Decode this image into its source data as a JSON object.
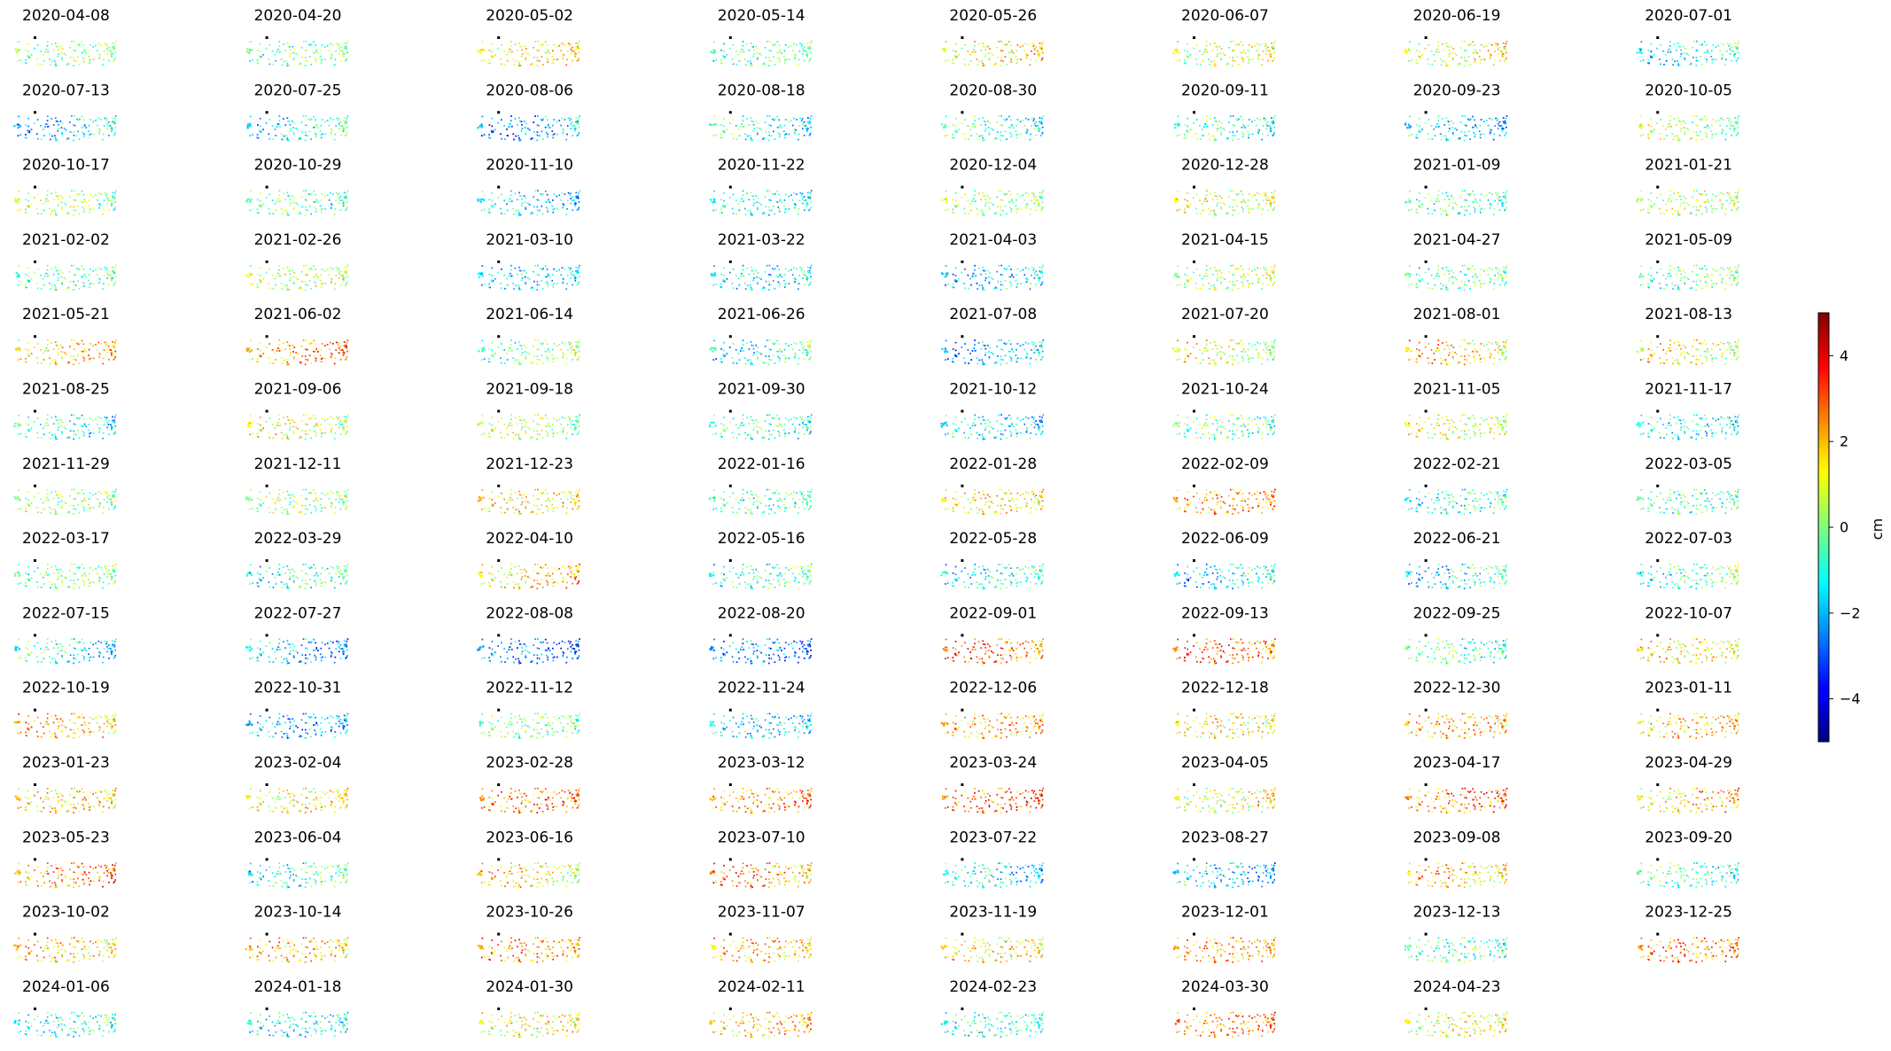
{
  "chart_data": {
    "type": "scatter",
    "dates": [
      "2020-04-08",
      "2020-04-20",
      "2020-05-02",
      "2020-05-14",
      "2020-05-26",
      "2020-06-07",
      "2020-06-19",
      "2020-07-01",
      "2020-07-13",
      "2020-07-25",
      "2020-08-06",
      "2020-08-18",
      "2020-08-30",
      "2020-09-11",
      "2020-09-23",
      "2020-10-05",
      "2020-10-17",
      "2020-10-29",
      "2020-11-10",
      "2020-11-22",
      "2020-12-04",
      "2020-12-28",
      "2021-01-09",
      "2021-01-21",
      "2021-02-02",
      "2021-02-26",
      "2021-03-10",
      "2021-03-22",
      "2021-04-03",
      "2021-04-15",
      "2021-04-27",
      "2021-05-09",
      "2021-05-21",
      "2021-06-02",
      "2021-06-14",
      "2021-06-26",
      "2021-07-08",
      "2021-07-20",
      "2021-08-01",
      "2021-08-13",
      "2021-08-25",
      "2021-09-06",
      "2021-09-18",
      "2021-09-30",
      "2021-10-12",
      "2021-10-24",
      "2021-11-05",
      "2021-11-17",
      "2021-11-29",
      "2021-12-11",
      "2021-12-23",
      "2022-01-16",
      "2022-01-28",
      "2022-02-09",
      "2022-02-21",
      "2022-03-05",
      "2022-03-17",
      "2022-03-29",
      "2022-04-10",
      "2022-05-16",
      "2022-05-28",
      "2022-06-09",
      "2022-06-21",
      "2022-07-03",
      "2022-07-15",
      "2022-07-27",
      "2022-08-08",
      "2022-08-20",
      "2022-09-01",
      "2022-09-13",
      "2022-09-25",
      "2022-10-07",
      "2022-10-19",
      "2022-10-31",
      "2022-11-12",
      "2022-11-24",
      "2022-12-06",
      "2022-12-18",
      "2022-12-30",
      "2023-01-11",
      "2023-01-23",
      "2023-02-04",
      "2023-02-28",
      "2023-03-12",
      "2023-03-24",
      "2023-04-05",
      "2023-04-17",
      "2023-04-29",
      "2023-05-23",
      "2023-06-04",
      "2023-06-16",
      "2023-07-10",
      "2023-07-22",
      "2023-08-27",
      "2023-09-08",
      "2023-09-20",
      "2023-10-02",
      "2023-10-14",
      "2023-10-26",
      "2023-11-07",
      "2023-11-19",
      "2023-12-01",
      "2023-12-13",
      "2023-12-25",
      "2024-01-06",
      "2024-01-18",
      "2024-01-30",
      "2024-02-11",
      "2024-02-23",
      "2024-03-30",
      "2024-04-23"
    ],
    "panel_mean_cm": [
      0.1,
      -0.3,
      1.2,
      -0.5,
      1.3,
      0.6,
      0.9,
      -1.2,
      -1.6,
      -1.3,
      -2.4,
      -1.0,
      -0.6,
      -0.7,
      -1.5,
      0.2,
      0.3,
      -0.5,
      -1.4,
      -0.9,
      0.4,
      0.8,
      -0.6,
      0.6,
      -0.4,
      0.7,
      -1.6,
      -1.5,
      -1.6,
      0.4,
      -0.6,
      -0.3,
      1.6,
      2.4,
      -0.2,
      -1.1,
      -2.0,
      0.8,
      1.7,
      1.1,
      -0.8,
      0.9,
      0.4,
      -0.6,
      -1.3,
      -0.3,
      0.8,
      -1.2,
      0.2,
      0.4,
      1.5,
      -0.7,
      1.4,
      2.4,
      -0.9,
      -0.7,
      -0.2,
      -0.9,
      1.6,
      -0.8,
      -1.2,
      -1.5,
      -1.2,
      -0.6,
      -1.1,
      -1.9,
      -2.6,
      -2.6,
      2.8,
      3.0,
      -0.5,
      1.4,
      1.9,
      -2.0,
      -0.1,
      -1.4,
      2.0,
      1.2,
      2.0,
      1.6,
      1.5,
      1.2,
      2.6,
      2.3,
      2.8,
      0.9,
      2.5,
      1.6,
      2.4,
      -0.9,
      1.4,
      2.4,
      -1.2,
      -1.6,
      2.0,
      -0.6,
      1.8,
      2.0,
      2.4,
      1.9,
      1.4,
      2.2,
      -0.5,
      2.6,
      -0.8,
      -1.2,
      1.2,
      2.0,
      -1.0,
      2.4,
      1.0
    ],
    "columns": 8,
    "colormap": "jet",
    "colorbar": {
      "label": "cm",
      "vmin": -5,
      "vmax": 5,
      "ticks": [
        4,
        2,
        0,
        -2,
        -4
      ],
      "tick_labels": [
        "4",
        "2",
        "0",
        "−2",
        "−4"
      ]
    },
    "reference_marker": "black square"
  }
}
